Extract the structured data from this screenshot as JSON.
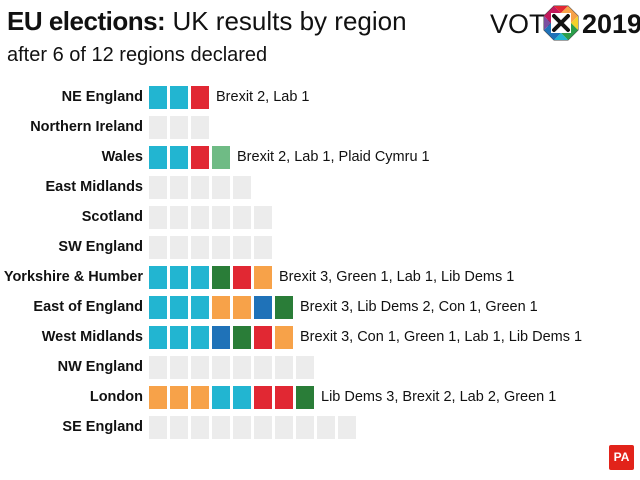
{
  "header": {
    "title_bold": "EU elections:",
    "title_rest": "UK results by region",
    "subtitle": "after 6 of 12 regions declared",
    "logo_left": "VOTE",
    "logo_right": "2019",
    "credit": "PA"
  },
  "colors": {
    "Brexit": "#22b5d1",
    "Lab": "#e12833",
    "Plaid Cymru": "#6fbb85",
    "Green": "#2a7d38",
    "Lib Dems": "#f7a249",
    "Con": "#1f72b8",
    "undeclared": "#ececec"
  },
  "chart_data": {
    "type": "waffle",
    "title": "EU elections: UK results by region",
    "subtitle": "after 6 of 12 regions declared",
    "regions": [
      {
        "name": "NE England",
        "seats": 3,
        "declared": true,
        "results": [
          {
            "party": "Brexit",
            "seats": 2
          },
          {
            "party": "Lab",
            "seats": 1
          }
        ],
        "label": "Brexit 2, Lab 1"
      },
      {
        "name": "Northern Ireland",
        "seats": 3,
        "declared": false,
        "results": [],
        "label": ""
      },
      {
        "name": "Wales",
        "seats": 4,
        "declared": true,
        "results": [
          {
            "party": "Brexit",
            "seats": 2
          },
          {
            "party": "Lab",
            "seats": 1
          },
          {
            "party": "Plaid Cymru",
            "seats": 1
          }
        ],
        "label": "Brexit 2, Lab 1, Plaid Cymru 1"
      },
      {
        "name": "East Midlands",
        "seats": 5,
        "declared": false,
        "results": [],
        "label": ""
      },
      {
        "name": "Scotland",
        "seats": 6,
        "declared": false,
        "results": [],
        "label": ""
      },
      {
        "name": "SW England",
        "seats": 6,
        "declared": false,
        "results": [],
        "label": ""
      },
      {
        "name": "Yorkshire & Humber",
        "seats": 6,
        "declared": true,
        "results": [
          {
            "party": "Brexit",
            "seats": 3
          },
          {
            "party": "Green",
            "seats": 1
          },
          {
            "party": "Lab",
            "seats": 1
          },
          {
            "party": "Lib Dems",
            "seats": 1
          }
        ],
        "label": "Brexit 3, Green 1, Lab 1, Lib Dems 1"
      },
      {
        "name": "East of England",
        "seats": 7,
        "declared": true,
        "results": [
          {
            "party": "Brexit",
            "seats": 3
          },
          {
            "party": "Lib Dems",
            "seats": 2
          },
          {
            "party": "Con",
            "seats": 1
          },
          {
            "party": "Green",
            "seats": 1
          }
        ],
        "label": "Brexit 3, Lib Dems 2, Con 1, Green 1"
      },
      {
        "name": "West Midlands",
        "seats": 7,
        "declared": true,
        "results": [
          {
            "party": "Brexit",
            "seats": 3
          },
          {
            "party": "Con",
            "seats": 1
          },
          {
            "party": "Green",
            "seats": 1
          },
          {
            "party": "Lab",
            "seats": 1
          },
          {
            "party": "Lib Dems",
            "seats": 1
          }
        ],
        "label": "Brexit 3, Con 1, Green 1, Lab 1, Lib Dems 1"
      },
      {
        "name": "NW England",
        "seats": 8,
        "declared": false,
        "results": [],
        "label": ""
      },
      {
        "name": "London",
        "seats": 8,
        "declared": true,
        "results": [
          {
            "party": "Lib Dems",
            "seats": 3
          },
          {
            "party": "Brexit",
            "seats": 2
          },
          {
            "party": "Lab",
            "seats": 2
          },
          {
            "party": "Green",
            "seats": 1
          }
        ],
        "label": "Lib Dems 3, Brexit 2, Lab 2, Green 1"
      },
      {
        "name": "SE England",
        "seats": 10,
        "declared": false,
        "results": [],
        "label": ""
      }
    ]
  }
}
